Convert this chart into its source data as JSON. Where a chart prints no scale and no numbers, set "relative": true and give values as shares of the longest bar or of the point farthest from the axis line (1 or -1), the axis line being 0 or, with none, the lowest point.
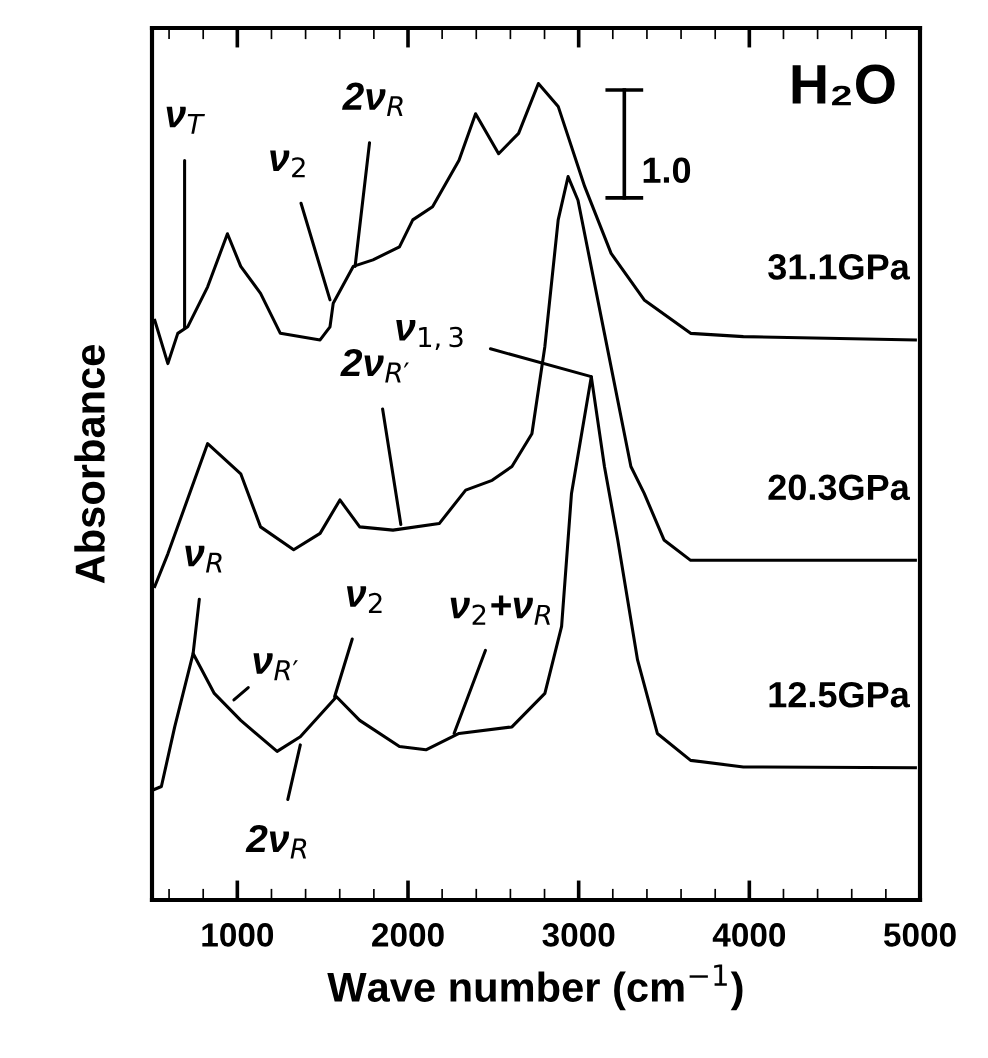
{
  "chart_data": {
    "type": "line",
    "relative": true,
    "xlabel": "Wave number (cm$^{−1}$)",
    "ylabel": "Absorbance",
    "xlim": [
      500,
      5000
    ],
    "xticks": [
      1000,
      2000,
      3000,
      4000,
      5000
    ],
    "grid": false,
    "marker": "none",
    "line_style": "solid",
    "series": [
      {
        "name": "31.1GPa",
        "color": "#000000",
        "x": [
          516,
          593,
          651,
          709,
          826,
          942,
          1020,
          1136,
          1252,
          1485,
          1543,
          1562,
          1679,
          1795,
          1950,
          2028,
          2144,
          2299,
          2396,
          2531,
          2648,
          2764,
          2880,
          3035,
          3190,
          3384,
          3656,
          3965,
          4973
        ],
        "values": [
          0.71,
          0.657,
          0.694,
          0.702,
          0.751,
          0.816,
          0.776,
          0.743,
          0.694,
          0.686,
          0.702,
          0.731,
          0.776,
          0.784,
          0.8,
          0.833,
          0.849,
          0.906,
          0.963,
          0.914,
          0.939,
          1.0,
          0.972,
          0.874,
          0.792,
          0.735,
          0.694,
          0.69,
          0.686
        ]
      },
      {
        "name": "20.3GPa",
        "color": "#000000",
        "x": [
          516,
          593,
          826,
          1020,
          1136,
          1330,
          1485,
          1601,
          1717,
          1912,
          2183,
          2338,
          2493,
          2609,
          2726,
          2802,
          2880,
          2938,
          2996,
          3151,
          3306,
          3384,
          3500,
          3656,
          4973
        ],
        "values": [
          0.384,
          0.424,
          0.559,
          0.522,
          0.457,
          0.429,
          0.449,
          0.49,
          0.457,
          0.453,
          0.461,
          0.502,
          0.514,
          0.531,
          0.571,
          0.678,
          0.833,
          0.886,
          0.857,
          0.694,
          0.531,
          0.498,
          0.441,
          0.416,
          0.416
        ]
      },
      {
        "name": "12.5GPa",
        "color": "#000000",
        "x": [
          510,
          555,
          633,
          741,
          865,
          1020,
          1233,
          1369,
          1581,
          1717,
          1950,
          2105,
          2299,
          2609,
          2802,
          2900,
          2958,
          3074,
          3151,
          3229,
          3345,
          3461,
          3656,
          3965,
          4973
        ],
        "values": [
          0.135,
          0.139,
          0.212,
          0.302,
          0.253,
          0.22,
          0.182,
          0.2,
          0.249,
          0.22,
          0.188,
          0.184,
          0.204,
          0.212,
          0.253,
          0.335,
          0.498,
          0.641,
          0.531,
          0.441,
          0.294,
          0.204,
          0.171,
          0.163,
          0.162
        ]
      }
    ],
    "annotations": [
      {
        "text": "ν$_{T}$",
        "x": 691,
        "y": 0.7
      },
      {
        "text": "ν$_{2}$",
        "x": 1543,
        "y": 0.735
      },
      {
        "text": "2ν$_{R}$",
        "x": 1690,
        "y": 0.776
      },
      {
        "text": "2ν$_{R′}$",
        "x": 1958,
        "y": 0.46
      },
      {
        "text": "ν$_{1,3}$",
        "x": 3074,
        "y": 0.641
      },
      {
        "text": "ν$_{R}$",
        "x": 741,
        "y": 0.302
      },
      {
        "text": "ν$_{R′}$",
        "x": 980,
        "y": 0.245
      },
      {
        "text": "ν$_{2}$",
        "x": 1570,
        "y": 0.249
      },
      {
        "text": "ν$_{2}$+ν$_{R}$",
        "x": 2270,
        "y": 0.204
      },
      {
        "text": "2ν$_{R}$",
        "x": 1369,
        "y": 0.19
      },
      "H₂O",
      "1.0"
    ]
  }
}
